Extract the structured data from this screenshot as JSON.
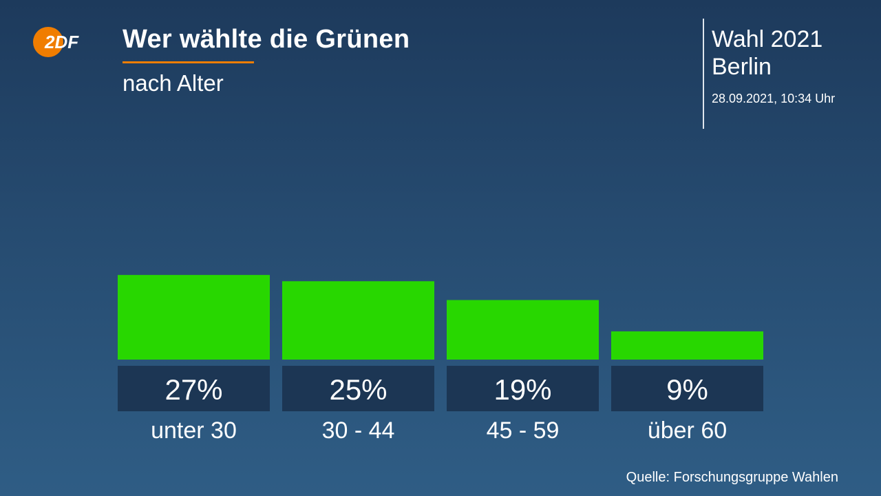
{
  "header": {
    "logo_text": "2DF",
    "title": "Wer wählte die Grünen",
    "subtitle": "nach Alter",
    "election": "Wahl 2021",
    "region": "Berlin",
    "timestamp": "28.09.2021, 10:34 Uhr"
  },
  "footer": {
    "source": "Quelle: Forschungsgruppe Wahlen"
  },
  "colors": {
    "bar": "#28d700",
    "label_box": "#1c3654",
    "accent": "#f07d00"
  },
  "chart_data": {
    "type": "bar",
    "title": "Wer wählte die Grünen",
    "subtitle": "nach Alter",
    "categories": [
      "unter 30",
      "30 - 44",
      "45 - 59",
      "über 60"
    ],
    "values": [
      27,
      25,
      19,
      9
    ],
    "value_labels": [
      "27%",
      "25%",
      "19%",
      "9%"
    ],
    "ylabel": "%",
    "xlabel": "",
    "ylim": [
      0,
      100
    ],
    "grid": false,
    "legend": "none"
  }
}
